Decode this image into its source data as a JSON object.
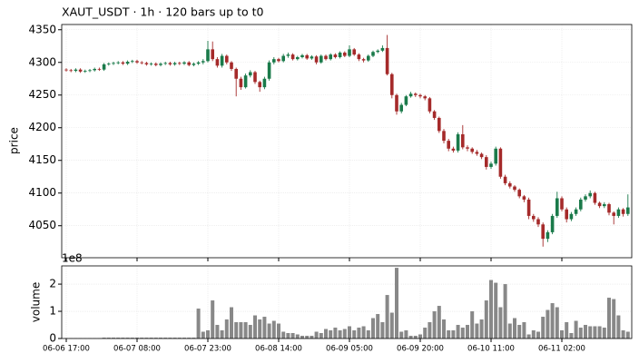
{
  "chart_data": [
    {
      "type": "candlestick",
      "title": "XAUT_USDT  ·  1h  ·  120 bars up to t0",
      "ylabel": "price",
      "up_color": "#1a7a4a",
      "down_color": "#a52a2a",
      "grid": true,
      "ylim": [
        4001,
        4358
      ],
      "yticks": [
        4050,
        4100,
        4150,
        4200,
        4250,
        4300,
        4350
      ],
      "open": [
        4289,
        4288,
        4287,
        4289,
        4286,
        4287,
        4288,
        4290,
        4289,
        4297,
        4298,
        4299,
        4300,
        4298,
        4301,
        4302,
        4300,
        4299,
        4297,
        4298,
        4296,
        4298,
        4299,
        4297,
        4299,
        4298,
        4300,
        4296,
        4298,
        4300,
        4302,
        4320,
        4305,
        4295,
        4310,
        4300,
        4290,
        4275,
        4262,
        4280,
        4285,
        4270,
        4262,
        4275,
        4300,
        4305,
        4302,
        4310,
        4312,
        4305,
        4308,
        4311,
        4306,
        4309,
        4300,
        4310,
        4305,
        4312,
        4308,
        4315,
        4310,
        4320,
        4312,
        4305,
        4303,
        4310,
        4316,
        4318,
        4322,
        4282,
        4250,
        4225,
        4235,
        4248,
        4252,
        4250,
        4248,
        4245,
        4225,
        4215,
        4195,
        4180,
        4168,
        4165,
        4190,
        4170,
        4168,
        4163,
        4160,
        4155,
        4140,
        4145,
        4168,
        4125,
        4115,
        4110,
        4105,
        4095,
        4090,
        4065,
        4060,
        4052,
        4030,
        4040,
        4065,
        4092,
        4075,
        4060,
        4068,
        4075,
        4090,
        4095,
        4100,
        4085,
        4080,
        4083,
        4070,
        4065,
        4075,
        4068
      ],
      "high": [
        4291,
        4290,
        4291,
        4291,
        4289,
        4290,
        4292,
        4292,
        4299,
        4300,
        4301,
        4302,
        4302,
        4303,
        4304,
        4304,
        4302,
        4301,
        4300,
        4300,
        4300,
        4301,
        4301,
        4301,
        4301,
        4302,
        4302,
        4300,
        4302,
        4305,
        4333,
        4332,
        4308,
        4313,
        4312,
        4302,
        4292,
        4278,
        4283,
        4288,
        4287,
        4272,
        4278,
        4303,
        4308,
        4307,
        4313,
        4315,
        4314,
        4310,
        4313,
        4313,
        4311,
        4311,
        4312,
        4312,
        4314,
        4314,
        4317,
        4317,
        4326,
        4322,
        4314,
        4307,
        4312,
        4318,
        4320,
        4326,
        4342,
        4284,
        4252,
        4238,
        4250,
        4255,
        4254,
        4252,
        4250,
        4247,
        4227,
        4217,
        4198,
        4183,
        4171,
        4193,
        4204,
        4173,
        4170,
        4166,
        4162,
        4158,
        4148,
        4171,
        4170,
        4128,
        4118,
        4112,
        4107,
        4097,
        4093,
        4068,
        4063,
        4055,
        4043,
        4068,
        4102,
        4095,
        4078,
        4071,
        4078,
        4093,
        4098,
        4104,
        4102,
        4087,
        4086,
        4085,
        4072,
        4078,
        4077,
        4098
      ],
      "low": [
        4286,
        4285,
        4285,
        4284,
        4284,
        4285,
        4286,
        4287,
        4287,
        4295,
        4296,
        4297,
        4296,
        4296,
        4299,
        4298,
        4297,
        4295,
        4295,
        4294,
        4294,
        4296,
        4295,
        4295,
        4296,
        4296,
        4294,
        4294,
        4296,
        4297,
        4300,
        4302,
        4292,
        4292,
        4297,
        4287,
        4248,
        4258,
        4260,
        4277,
        4267,
        4255,
        4259,
        4272,
        4297,
        4300,
        4300,
        4307,
        4303,
        4303,
        4306,
        4304,
        4304,
        4297,
        4298,
        4303,
        4303,
        4306,
        4306,
        4308,
        4308,
        4310,
        4302,
        4300,
        4301,
        4308,
        4314,
        4316,
        4280,
        4245,
        4220,
        4222,
        4233,
        4246,
        4247,
        4245,
        4242,
        4222,
        4212,
        4192,
        4176,
        4164,
        4162,
        4162,
        4167,
        4164,
        4160,
        4157,
        4152,
        4136,
        4137,
        4142,
        4122,
        4112,
        4107,
        4102,
        4092,
        4086,
        4060,
        4056,
        4048,
        4018,
        4025,
        4037,
        4062,
        4072,
        4055,
        4057,
        4065,
        4072,
        4087,
        4092,
        4082,
        4077,
        4077,
        4066,
        4052,
        4062,
        4064,
        4065
      ],
      "close": [
        4288,
        4287,
        4289,
        4286,
        4287,
        4288,
        4290,
        4289,
        4297,
        4298,
        4299,
        4300,
        4298,
        4301,
        4302,
        4300,
        4299,
        4297,
        4298,
        4296,
        4298,
        4299,
        4297,
        4299,
        4298,
        4300,
        4296,
        4298,
        4300,
        4302,
        4320,
        4305,
        4295,
        4310,
        4300,
        4290,
        4275,
        4262,
        4280,
        4285,
        4270,
        4262,
        4275,
        4300,
        4305,
        4302,
        4310,
        4312,
        4305,
        4308,
        4311,
        4306,
        4309,
        4300,
        4310,
        4305,
        4312,
        4308,
        4315,
        4310,
        4320,
        4312,
        4305,
        4303,
        4310,
        4316,
        4318,
        4322,
        4282,
        4250,
        4225,
        4235,
        4248,
        4252,
        4250,
        4248,
        4245,
        4225,
        4215,
        4195,
        4180,
        4168,
        4165,
        4190,
        4170,
        4168,
        4163,
        4160,
        4155,
        4140,
        4145,
        4168,
        4125,
        4115,
        4110,
        4105,
        4095,
        4090,
        4065,
        4060,
        4052,
        4030,
        4040,
        4065,
        4092,
        4075,
        4060,
        4068,
        4075,
        4090,
        4095,
        4100,
        4085,
        4080,
        4083,
        4070,
        4065,
        4075,
        4068,
        4078
      ]
    },
    {
      "type": "bar",
      "ylabel": "volume",
      "offset_label": "1e8",
      "color": "#888888",
      "grid": true,
      "ylim": [
        0,
        2.67
      ],
      "yticks": [
        0,
        1,
        2
      ],
      "xticks": [
        {
          "value": 0,
          "label": "06-06 17:00"
        },
        {
          "value": 15,
          "label": "06-07 08:00"
        },
        {
          "value": 30,
          "label": "06-07 23:00"
        },
        {
          "value": 45,
          "label": "06-08 14:00"
        },
        {
          "value": 60,
          "label": "06-09 05:00"
        },
        {
          "value": 75,
          "label": "06-09 20:00"
        },
        {
          "value": 90,
          "label": "06-10 11:00"
        },
        {
          "value": 105,
          "label": "06-11 02:00"
        }
      ],
      "values": [
        0.01,
        0.01,
        0.01,
        0.01,
        0.01,
        0.01,
        0.01,
        0.01,
        0.03,
        0.03,
        0.03,
        0.03,
        0.03,
        0.03,
        0.03,
        0.03,
        0.03,
        0.03,
        0.03,
        0.03,
        0.03,
        0.03,
        0.03,
        0.03,
        0.03,
        0.03,
        0.03,
        0.03,
        1.1,
        0.25,
        0.3,
        1.4,
        0.5,
        0.3,
        0.7,
        1.15,
        0.6,
        0.6,
        0.6,
        0.5,
        0.85,
        0.7,
        0.8,
        0.55,
        0.65,
        0.55,
        0.25,
        0.2,
        0.2,
        0.15,
        0.1,
        0.1,
        0.1,
        0.25,
        0.2,
        0.35,
        0.3,
        0.4,
        0.3,
        0.35,
        0.45,
        0.3,
        0.4,
        0.45,
        0.3,
        0.75,
        0.9,
        0.6,
        1.6,
        0.95,
        2.6,
        0.25,
        0.3,
        0.1,
        0.1,
        0.15,
        0.4,
        0.6,
        1.0,
        1.2,
        0.7,
        0.3,
        0.3,
        0.5,
        0.4,
        0.5,
        1.0,
        0.55,
        0.7,
        1.4,
        2.15,
        2.05,
        1.15,
        2.0,
        0.55,
        0.75,
        0.5,
        0.6,
        0.15,
        0.3,
        0.25,
        0.8,
        1.05,
        1.3,
        1.15,
        0.3,
        0.6,
        0.2,
        0.65,
        0.4,
        0.5,
        0.45,
        0.45,
        0.45,
        0.4,
        1.5,
        1.45,
        0.85,
        0.3,
        0.25
      ]
    }
  ]
}
